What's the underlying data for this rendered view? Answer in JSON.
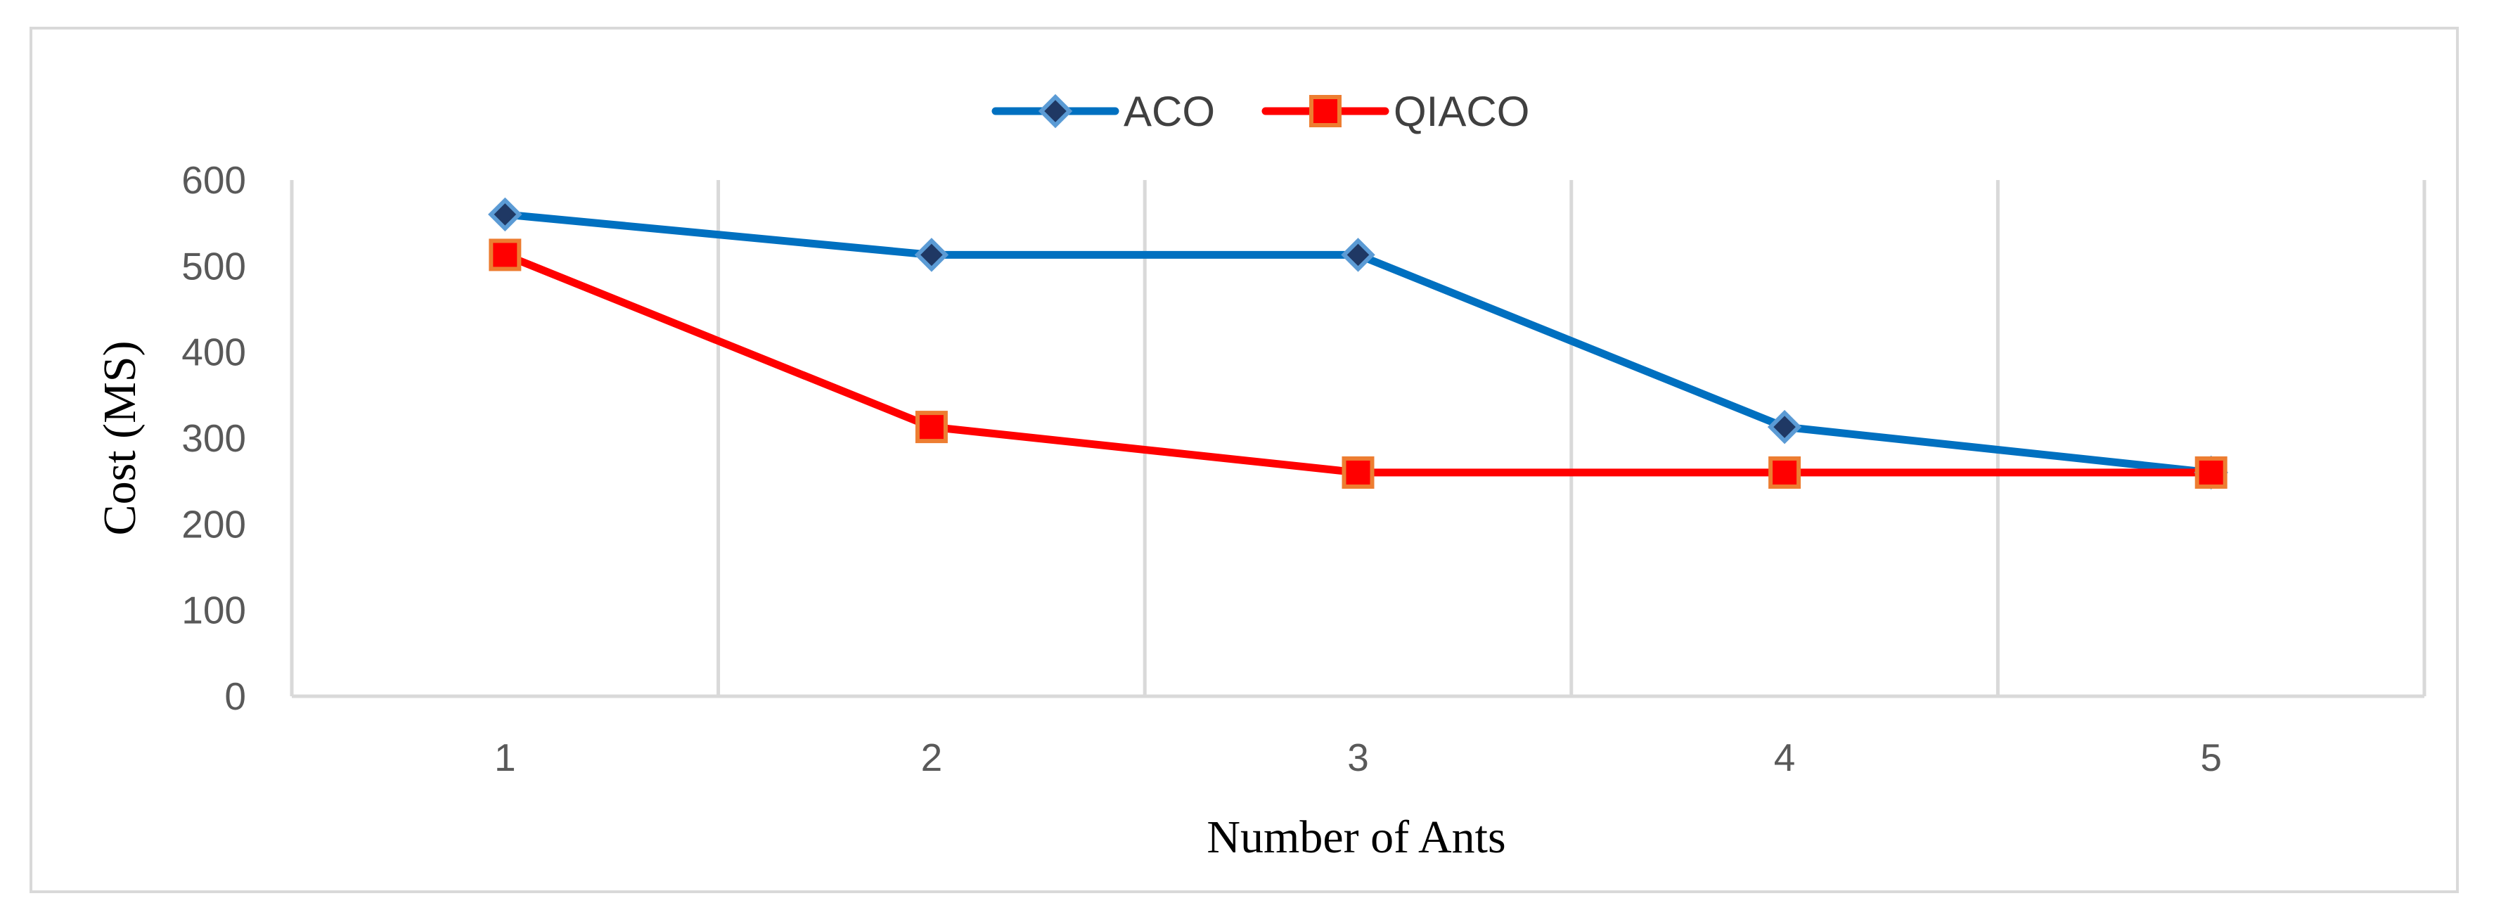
{
  "chart_data": {
    "type": "line",
    "title": "",
    "xlabel": "Number of Ants",
    "ylabel": "Cost (MS)",
    "categories": [
      "1",
      "2",
      "3",
      "4",
      "5"
    ],
    "ylim": [
      0,
      600
    ],
    "yticks": [
      "0",
      "100",
      "200",
      "300",
      "400",
      "500",
      "600"
    ],
    "grid": "vertical",
    "legend_position": "top-center",
    "series": [
      {
        "name": "ACO",
        "values": [
          560,
          513,
          513,
          313,
          260
        ],
        "color": "#0070C0",
        "marker": "diamond",
        "marker_fill": "#1F3864"
      },
      {
        "name": "QIACO",
        "values": [
          513,
          313,
          260,
          260,
          260
        ],
        "color": "#FF0000",
        "marker": "square",
        "marker_fill": "#FF0000",
        "marker_edge": "#ED7D31"
      }
    ]
  }
}
